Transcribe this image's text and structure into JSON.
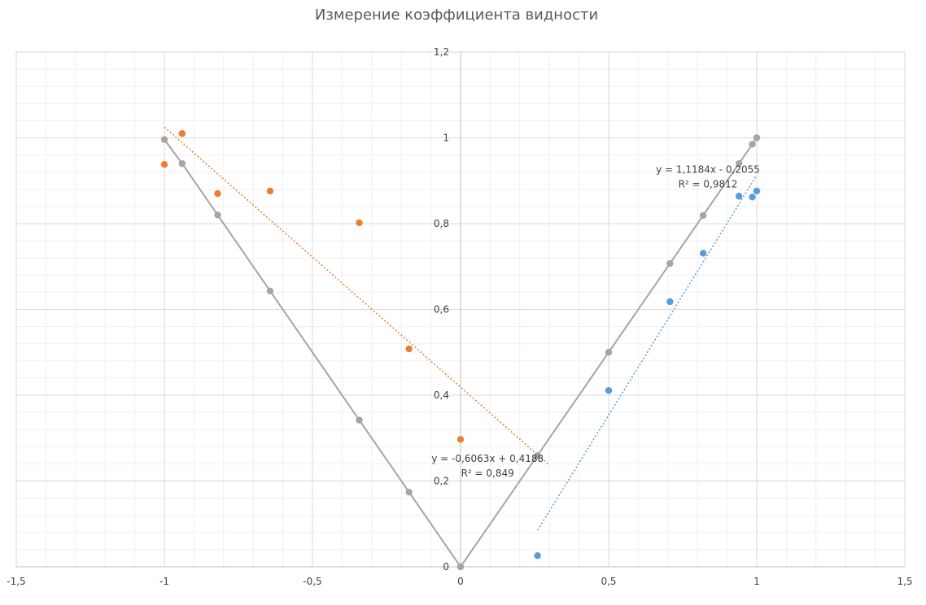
{
  "chart_data": {
    "type": "scatter",
    "title": "Измерение коэффициента видности",
    "xlabel": "",
    "ylabel": "",
    "xlim": [
      -1.5,
      1.5
    ],
    "ylim": [
      0,
      1.2
    ],
    "x_major_step": 0.5,
    "y_major_step": 0.2,
    "x_minor_step": 0.1,
    "y_minor_step": 0.04,
    "grid": true,
    "legend": "none",
    "x_tick_labels": [
      "-1,5",
      "-1",
      "-0,5",
      "0",
      "0,5",
      "1",
      "1,5"
    ],
    "y_tick_labels": [
      "0",
      "0,2",
      "0,4",
      "0,6",
      "0,8",
      "1",
      "1,2"
    ],
    "series": [
      {
        "color": "#5B9BD5",
        "mode": "markers",
        "points": [
          [
            0.26,
            0.026
          ],
          [
            0.5,
            0.411
          ],
          [
            0.707,
            0.618
          ],
          [
            0.819,
            0.731
          ],
          [
            0.94,
            0.864
          ],
          [
            0.985,
            0.862
          ],
          [
            1.0,
            0.876
          ]
        ]
      },
      {
        "color": "#ED7D31",
        "mode": "markers",
        "points": [
          [
            -1.0,
            0.938
          ],
          [
            -0.94,
            1.01
          ],
          [
            -0.82,
            0.87
          ],
          [
            -0.643,
            0.876
          ],
          [
            -0.342,
            0.802
          ],
          [
            -0.174,
            0.508
          ],
          [
            0.0,
            0.297
          ]
        ]
      },
      {
        "color": "#A5A5A5",
        "mode": "lines+markers",
        "points": [
          [
            -1.0,
            0.996
          ],
          [
            -0.94,
            0.94
          ],
          [
            -0.82,
            0.82
          ],
          [
            -0.643,
            0.643
          ],
          [
            -0.342,
            0.342
          ],
          [
            -0.174,
            0.174
          ],
          [
            0.0,
            0.0
          ],
          [
            0.259,
            0.259
          ],
          [
            0.5,
            0.5
          ],
          [
            0.707,
            0.707
          ],
          [
            0.819,
            0.819
          ],
          [
            0.94,
            0.94
          ],
          [
            0.985,
            0.985
          ],
          [
            1.0,
            1.0
          ]
        ]
      }
    ],
    "trendlines": [
      {
        "series_color": "#5B9BD5",
        "slope": 1.1184,
        "intercept": -0.2055,
        "x_range": [
          0.26,
          1.0
        ],
        "equation": "y = 1,1184x - 0,2055",
        "r2": "R² = 0,9812"
      },
      {
        "series_color": "#ED7D31",
        "slope": -0.6063,
        "intercept": 0.4188,
        "x_range": [
          -1.0,
          0.3
        ],
        "equation": "y = -0,6063x + 0,4188",
        "r2": "R² = 0,849"
      }
    ]
  }
}
